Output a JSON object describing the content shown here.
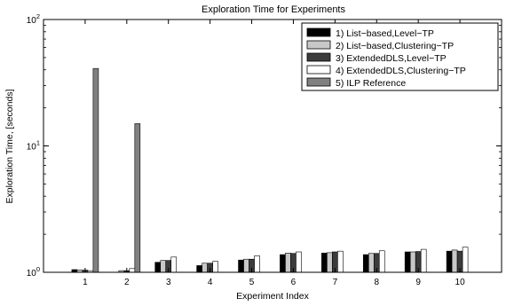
{
  "chart_data": {
    "type": "bar",
    "title": "Exploration Time for Experiments",
    "xlabel": "Experiment Index",
    "ylabel": "Exploration Time, [seconds]",
    "yscale": "log",
    "ylim": [
      1,
      100
    ],
    "y_ticks": [
      1,
      10,
      100
    ],
    "y_tick_labels": [
      {
        "base": "10",
        "exp": "0"
      },
      {
        "base": "10",
        "exp": "1"
      },
      {
        "base": "10",
        "exp": "2"
      }
    ],
    "categories": [
      "1",
      "2",
      "3",
      "4",
      "5",
      "6",
      "7",
      "8",
      "9",
      "10"
    ],
    "legend_position": "top-right",
    "grid": false,
    "series": [
      {
        "name": "1) List−based,Level−TP",
        "color": "#000000",
        "values": [
          1.05,
          null,
          1.2,
          1.13,
          1.25,
          1.38,
          1.42,
          1.38,
          1.45,
          1.47
        ]
      },
      {
        "name": "2) List−based,Clustering−TP",
        "color": "#c8c8c8",
        "values": [
          1.04,
          1.03,
          1.24,
          1.18,
          1.27,
          1.42,
          1.43,
          1.41,
          1.45,
          1.5
        ]
      },
      {
        "name": "3) ExtendedDLS,Level−TP",
        "color": "#3c3c3c",
        "values": [
          1.04,
          1.03,
          1.24,
          1.18,
          1.27,
          1.41,
          1.45,
          1.41,
          1.46,
          1.47
        ]
      },
      {
        "name": "4) ExtendedDLS,Clustering−TP",
        "color": "#ffffff",
        "values": [
          1.03,
          1.07,
          1.32,
          1.22,
          1.35,
          1.45,
          1.47,
          1.48,
          1.52,
          1.58
        ]
      },
      {
        "name": "5) ILP Reference",
        "color": "#808080",
        "values": [
          41,
          15,
          null,
          null,
          null,
          null,
          null,
          null,
          null,
          null
        ]
      }
    ]
  }
}
